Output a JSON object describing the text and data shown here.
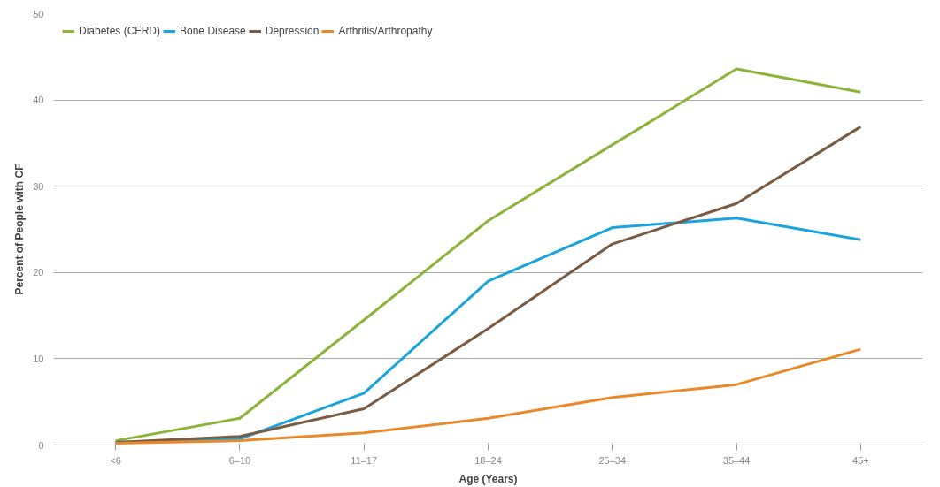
{
  "chart_data": {
    "type": "line",
    "xlabel": "Age (Years)",
    "ylabel": "Percent of People with CF",
    "categories": [
      "<6",
      "6–10",
      "11–17",
      "18–24",
      "25–34",
      "35–44",
      "45+"
    ],
    "series": [
      {
        "name": "Diabetes (CFRD)",
        "color": "#8db33a",
        "values": [
          0.5,
          3.1,
          14.5,
          26,
          34.8,
          43.6,
          40.9
        ]
      },
      {
        "name": "Bone Disease",
        "color": "#1aa3dd",
        "values": [
          0.3,
          0.7,
          6,
          19,
          25.2,
          26.3,
          23.8
        ]
      },
      {
        "name": "Depression",
        "color": "#7a5c45",
        "values": [
          0.3,
          1,
          4.2,
          13.5,
          23.3,
          28,
          36.9
        ]
      },
      {
        "name": "Arthritis/Arthropathy",
        "color": "#e8892a",
        "values": [
          0.2,
          0.5,
          1.4,
          3.1,
          5.5,
          7,
          11.1
        ]
      }
    ],
    "ylim": [
      0,
      50
    ],
    "yticks": [
      0,
      10,
      20,
      30,
      40,
      50
    ],
    "grid": "y",
    "legend": "top left",
    "marker": "none",
    "line_style": "solid"
  }
}
